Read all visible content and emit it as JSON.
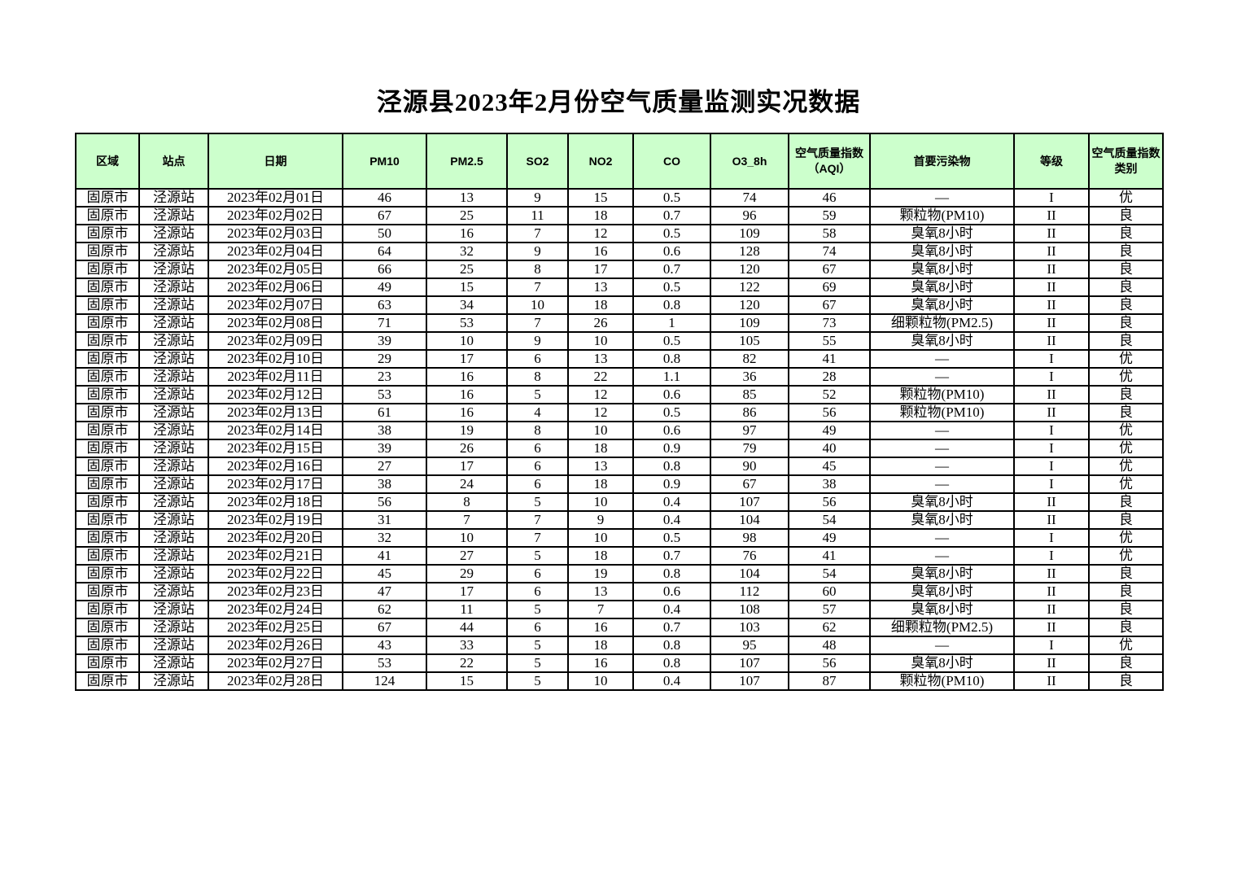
{
  "title": "泾源县2023年2月份空气质量监测实况数据",
  "colors": {
    "header_bg": "#ccffcc",
    "border": "#000000",
    "text": "#000000"
  },
  "table": {
    "column_keys": [
      "region",
      "station",
      "date",
      "pm10",
      "pm25",
      "so2",
      "no2",
      "co",
      "o3-8h",
      "aqi",
      "primary-pollutant",
      "grade",
      "aqi-category"
    ],
    "columns": [
      "区域",
      "站点",
      "日期",
      "PM10",
      "PM2.5",
      "SO2",
      "NO2",
      "CO",
      "O3_8h",
      "空气质量指数（AQI）",
      "首要污染物",
      "等级",
      "空气质量指数类别"
    ],
    "rows": [
      [
        "固原市",
        "泾源站",
        "2023年02月01日",
        "46",
        "13",
        "9",
        "15",
        "0.5",
        "74",
        "46",
        "—",
        "I",
        "优"
      ],
      [
        "固原市",
        "泾源站",
        "2023年02月02日",
        "67",
        "25",
        "11",
        "18",
        "0.7",
        "96",
        "59",
        "颗粒物(PM10)",
        "II",
        "良"
      ],
      [
        "固原市",
        "泾源站",
        "2023年02月03日",
        "50",
        "16",
        "7",
        "12",
        "0.5",
        "109",
        "58",
        "臭氧8小时",
        "II",
        "良"
      ],
      [
        "固原市",
        "泾源站",
        "2023年02月04日",
        "64",
        "32",
        "9",
        "16",
        "0.6",
        "128",
        "74",
        "臭氧8小时",
        "II",
        "良"
      ],
      [
        "固原市",
        "泾源站",
        "2023年02月05日",
        "66",
        "25",
        "8",
        "17",
        "0.7",
        "120",
        "67",
        "臭氧8小时",
        "II",
        "良"
      ],
      [
        "固原市",
        "泾源站",
        "2023年02月06日",
        "49",
        "15",
        "7",
        "13",
        "0.5",
        "122",
        "69",
        "臭氧8小时",
        "II",
        "良"
      ],
      [
        "固原市",
        "泾源站",
        "2023年02月07日",
        "63",
        "34",
        "10",
        "18",
        "0.8",
        "120",
        "67",
        "臭氧8小时",
        "II",
        "良"
      ],
      [
        "固原市",
        "泾源站",
        "2023年02月08日",
        "71",
        "53",
        "7",
        "26",
        "1",
        "109",
        "73",
        "细颗粒物(PM2.5)",
        "II",
        "良"
      ],
      [
        "固原市",
        "泾源站",
        "2023年02月09日",
        "39",
        "10",
        "9",
        "10",
        "0.5",
        "105",
        "55",
        "臭氧8小时",
        "II",
        "良"
      ],
      [
        "固原市",
        "泾源站",
        "2023年02月10日",
        "29",
        "17",
        "6",
        "13",
        "0.8",
        "82",
        "41",
        "—",
        "I",
        "优"
      ],
      [
        "固原市",
        "泾源站",
        "2023年02月11日",
        "23",
        "16",
        "8",
        "22",
        "1.1",
        "36",
        "28",
        "—",
        "I",
        "优"
      ],
      [
        "固原市",
        "泾源站",
        "2023年02月12日",
        "53",
        "16",
        "5",
        "12",
        "0.6",
        "85",
        "52",
        "颗粒物(PM10)",
        "II",
        "良"
      ],
      [
        "固原市",
        "泾源站",
        "2023年02月13日",
        "61",
        "16",
        "4",
        "12",
        "0.5",
        "86",
        "56",
        "颗粒物(PM10)",
        "II",
        "良"
      ],
      [
        "固原市",
        "泾源站",
        "2023年02月14日",
        "38",
        "19",
        "8",
        "10",
        "0.6",
        "97",
        "49",
        "—",
        "I",
        "优"
      ],
      [
        "固原市",
        "泾源站",
        "2023年02月15日",
        "39",
        "26",
        "6",
        "18",
        "0.9",
        "79",
        "40",
        "—",
        "I",
        "优"
      ],
      [
        "固原市",
        "泾源站",
        "2023年02月16日",
        "27",
        "17",
        "6",
        "13",
        "0.8",
        "90",
        "45",
        "—",
        "I",
        "优"
      ],
      [
        "固原市",
        "泾源站",
        "2023年02月17日",
        "38",
        "24",
        "6",
        "18",
        "0.9",
        "67",
        "38",
        "—",
        "I",
        "优"
      ],
      [
        "固原市",
        "泾源站",
        "2023年02月18日",
        "56",
        "8",
        "5",
        "10",
        "0.4",
        "107",
        "56",
        "臭氧8小时",
        "II",
        "良"
      ],
      [
        "固原市",
        "泾源站",
        "2023年02月19日",
        "31",
        "7",
        "7",
        "9",
        "0.4",
        "104",
        "54",
        "臭氧8小时",
        "II",
        "良"
      ],
      [
        "固原市",
        "泾源站",
        "2023年02月20日",
        "32",
        "10",
        "7",
        "10",
        "0.5",
        "98",
        "49",
        "—",
        "I",
        "优"
      ],
      [
        "固原市",
        "泾源站",
        "2023年02月21日",
        "41",
        "27",
        "5",
        "18",
        "0.7",
        "76",
        "41",
        "—",
        "I",
        "优"
      ],
      [
        "固原市",
        "泾源站",
        "2023年02月22日",
        "45",
        "29",
        "6",
        "19",
        "0.8",
        "104",
        "54",
        "臭氧8小时",
        "II",
        "良"
      ],
      [
        "固原市",
        "泾源站",
        "2023年02月23日",
        "47",
        "17",
        "6",
        "13",
        "0.6",
        "112",
        "60",
        "臭氧8小时",
        "II",
        "良"
      ],
      [
        "固原市",
        "泾源站",
        "2023年02月24日",
        "62",
        "11",
        "5",
        "7",
        "0.4",
        "108",
        "57",
        "臭氧8小时",
        "II",
        "良"
      ],
      [
        "固原市",
        "泾源站",
        "2023年02月25日",
        "67",
        "44",
        "6",
        "16",
        "0.7",
        "103",
        "62",
        "细颗粒物(PM2.5)",
        "II",
        "良"
      ],
      [
        "固原市",
        "泾源站",
        "2023年02月26日",
        "43",
        "33",
        "5",
        "18",
        "0.8",
        "95",
        "48",
        "—",
        "I",
        "优"
      ],
      [
        "固原市",
        "泾源站",
        "2023年02月27日",
        "53",
        "22",
        "5",
        "16",
        "0.8",
        "107",
        "56",
        "臭氧8小时",
        "II",
        "良"
      ],
      [
        "固原市",
        "泾源站",
        "2023年02月28日",
        "124",
        "15",
        "5",
        "10",
        "0.4",
        "107",
        "87",
        "颗粒物(PM10)",
        "II",
        "良"
      ]
    ]
  }
}
